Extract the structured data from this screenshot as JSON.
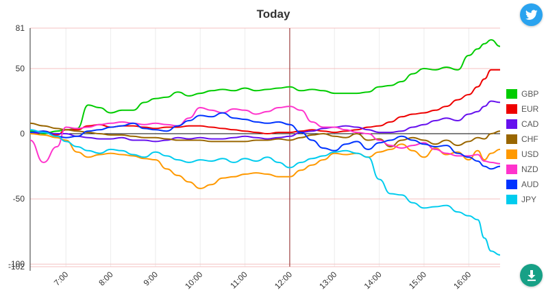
{
  "chart_data": {
    "type": "line",
    "title": "Today",
    "ylim": [
      -102,
      81
    ],
    "y_ticks": [
      81,
      50,
      0,
      -50,
      -100,
      -102
    ],
    "x_ticks": [
      "7:00",
      "8:00",
      "9:00",
      "10:00",
      "11:00",
      "12:00",
      "13:00",
      "14:00",
      "15:00",
      "16:00"
    ],
    "x_range": [
      6.2,
      16.7
    ],
    "marker_time": 12.0,
    "grid": true,
    "legend_position": "right",
    "x": [
      6.2,
      6.5,
      6.8,
      7.0,
      7.25,
      7.5,
      7.75,
      8.0,
      8.25,
      8.5,
      8.75,
      9.0,
      9.25,
      9.5,
      9.75,
      10.0,
      10.25,
      10.5,
      10.75,
      11.0,
      11.25,
      11.5,
      11.75,
      12.0,
      12.25,
      12.5,
      12.75,
      13.0,
      13.25,
      13.5,
      13.75,
      14.0,
      14.25,
      14.5,
      14.75,
      15.0,
      15.25,
      15.5,
      15.75,
      16.0,
      16.2,
      16.35,
      16.5,
      16.7
    ],
    "series": [
      {
        "name": "GBP",
        "color": "#00cc00",
        "values": [
          2,
          0,
          2,
          3,
          4,
          22,
          20,
          16,
          18,
          18,
          24,
          27,
          28,
          32,
          29,
          31,
          33,
          34,
          33,
          35,
          33,
          34,
          35,
          36,
          33,
          34,
          33,
          31,
          31,
          31,
          32,
          36,
          37,
          40,
          46,
          50,
          49,
          51,
          49,
          60,
          65,
          69,
          72,
          67
        ]
      },
      {
        "name": "EUR",
        "color": "#ee0000",
        "values": [
          0,
          2,
          -1,
          3,
          3,
          6,
          7,
          5,
          6,
          6,
          5,
          4,
          5,
          5,
          6,
          6,
          5,
          4,
          3,
          2,
          1,
          0,
          1,
          1,
          2,
          3,
          2,
          1,
          2,
          3,
          5,
          6,
          9,
          13,
          15,
          16,
          18,
          21,
          26,
          30,
          36,
          42,
          49,
          49
        ]
      },
      {
        "name": "CAD",
        "color": "#6611ee",
        "values": [
          0,
          1,
          0,
          0,
          -2,
          -3,
          -4,
          -4,
          -3,
          -5,
          -5,
          -6,
          -5,
          -3,
          -4,
          -3,
          -4,
          -4,
          -3,
          -2,
          -3,
          -4,
          -3,
          -2,
          1,
          2,
          4,
          5,
          6,
          5,
          3,
          1,
          1,
          2,
          5,
          7,
          10,
          12,
          10,
          15,
          17,
          21,
          25,
          24
        ]
      },
      {
        "name": "CHF",
        "color": "#996600",
        "values": [
          8,
          6,
          4,
          3,
          2,
          1,
          0,
          -1,
          -1,
          -2,
          -3,
          -3,
          -4,
          -5,
          -5,
          -5,
          -6,
          -6,
          -6,
          -6,
          -5,
          -5,
          -4,
          -5,
          -3,
          -1,
          0,
          -2,
          -3,
          0,
          -5,
          -4,
          -10,
          -5,
          -3,
          -5,
          -8,
          -5,
          -9,
          -6,
          -3,
          -4,
          0,
          2
        ]
      },
      {
        "name": "USD",
        "color": "#ff9900",
        "values": [
          0,
          -1,
          -3,
          -5,
          -14,
          -18,
          -16,
          -15,
          -16,
          -17,
          -19,
          -20,
          -27,
          -32,
          -37,
          -42,
          -39,
          -34,
          -33,
          -31,
          -30,
          -31,
          -33,
          -33,
          -28,
          -24,
          -20,
          -15,
          -16,
          -15,
          -18,
          -14,
          -12,
          -8,
          -13,
          -18,
          -11,
          -16,
          -14,
          -20,
          -13,
          -20,
          -15,
          -12
        ]
      },
      {
        "name": "NZD",
        "color": "#ff33cc",
        "values": [
          -5,
          -22,
          -10,
          5,
          4,
          5,
          7,
          8,
          9,
          8,
          7,
          8,
          7,
          6,
          12,
          20,
          18,
          16,
          19,
          18,
          15,
          17,
          20,
          21,
          18,
          9,
          5,
          5,
          3,
          1,
          0,
          -5,
          -9,
          -11,
          -9,
          -7,
          -12,
          -15,
          -17,
          -17,
          -16,
          -21,
          -22,
          -23
        ]
      },
      {
        "name": "AUD",
        "color": "#0033ff",
        "values": [
          1,
          2,
          -2,
          -3,
          -2,
          2,
          3,
          5,
          6,
          8,
          4,
          3,
          2,
          6,
          10,
          14,
          13,
          16,
          12,
          11,
          9,
          8,
          9,
          7,
          1,
          -5,
          -11,
          -13,
          -8,
          -6,
          -12,
          -7,
          -5,
          -2,
          -5,
          -8,
          -10,
          -9,
          -15,
          -18,
          -21,
          -25,
          -27,
          -25
        ]
      },
      {
        "name": "JPY",
        "color": "#00ccee",
        "values": [
          3,
          1,
          -2,
          -6,
          -10,
          -13,
          -15,
          -12,
          -13,
          -16,
          -18,
          -14,
          -17,
          -20,
          -22,
          -20,
          -21,
          -19,
          -22,
          -19,
          -21,
          -18,
          -22,
          -26,
          -22,
          -19,
          -17,
          -14,
          -13,
          -15,
          -18,
          -35,
          -46,
          -47,
          -53,
          -57,
          -56,
          -55,
          -60,
          -63,
          -66,
          -80,
          -90,
          -93
        ]
      }
    ]
  },
  "buttons": {
    "twitter_icon": "twitter-bird-icon",
    "download_icon": "download-arrow-icon"
  }
}
